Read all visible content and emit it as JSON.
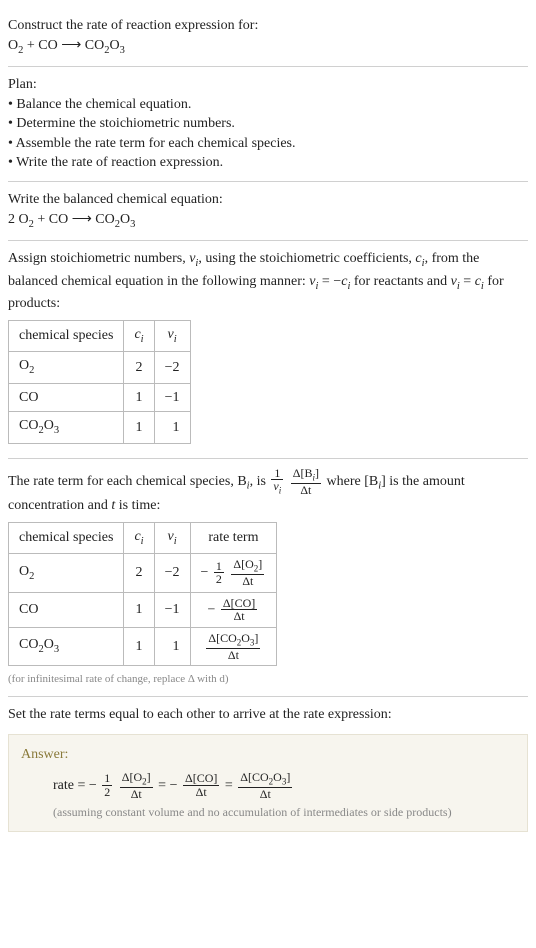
{
  "prompt": {
    "line1": "Construct the rate of reaction expression for:",
    "equation_lhs_1": "O",
    "equation_lhs_1_sub": "2",
    "equation_plus": " + CO",
    "arrow": " ⟶ ",
    "equation_rhs": "CO",
    "equation_rhs_sub1": "2",
    "equation_rhs_mid": "O",
    "equation_rhs_sub2": "3"
  },
  "plan": {
    "heading": "Plan:",
    "items": [
      "• Balance the chemical equation.",
      "• Determine the stoichiometric numbers.",
      "• Assemble the rate term for each chemical species.",
      "• Write the rate of reaction expression."
    ]
  },
  "balanced": {
    "heading": "Write the balanced chemical equation:",
    "coef": "2 ",
    "lhs1": "O",
    "lhs1_sub": "2",
    "plus": " + CO",
    "arrow": " ⟶ ",
    "rhs": "CO",
    "rhs_sub1": "2",
    "rhs_mid": "O",
    "rhs_sub2": "3"
  },
  "stoich_text": {
    "t1": "Assign stoichiometric numbers, ",
    "nu": "ν",
    "isub": "i",
    "t2": ", using the stoichiometric coefficients, ",
    "c": "c",
    "t3": ", from the balanced chemical equation in the following manner: ",
    "eq1_lhs": "ν",
    "eq1": " = −",
    "eq1_rhs": "c",
    "t4": " for reactants and ",
    "eq2_lhs": "ν",
    "eq2": " = ",
    "eq2_rhs": "c",
    "t5": " for products:"
  },
  "table1": {
    "h1": "chemical species",
    "h2": "c",
    "h2_sub": "i",
    "h3": "ν",
    "h3_sub": "i",
    "rows": [
      {
        "sp": "O",
        "sp_sub": "2",
        "c": "2",
        "v": "−2"
      },
      {
        "sp": "CO",
        "sp_sub": "",
        "c": "1",
        "v": "−1"
      },
      {
        "sp": "CO",
        "sp_sub": "2",
        "sp_mid": "O",
        "sp_sub2": "3",
        "c": "1",
        "v": "1"
      }
    ]
  },
  "rateterm_text": {
    "t1": "The rate term for each chemical species, B",
    "isub": "i",
    "t2": ", is ",
    "frac1_num": "1",
    "frac1_den_sym": "ν",
    "frac1_den_sub": "i",
    "frac2_num": "Δ[B",
    "frac2_num_sub": "i",
    "frac2_num_end": "]",
    "frac2_den": "Δt",
    "t3": " where [B",
    "t4": "] is the amount concentration and ",
    "tvar": "t",
    "t5": " is time:"
  },
  "table2": {
    "h1": "chemical species",
    "h2": "c",
    "h2_sub": "i",
    "h3": "ν",
    "h3_sub": "i",
    "h4": "rate term",
    "rows": [
      {
        "sp": "O",
        "sp_sub": "2",
        "c": "2",
        "v": "−2",
        "rt_prefix": "−",
        "rt_coef_num": "1",
        "rt_coef_den": "2",
        "rt_num": "Δ[O",
        "rt_num_sub": "2",
        "rt_num_end": "]",
        "rt_den": "Δt"
      },
      {
        "sp": "CO",
        "sp_sub": "",
        "c": "1",
        "v": "−1",
        "rt_prefix": "−",
        "rt_coef_num": "",
        "rt_coef_den": "",
        "rt_num": "Δ[CO]",
        "rt_num_sub": "",
        "rt_num_end": "",
        "rt_den": "Δt"
      },
      {
        "sp": "CO",
        "sp_sub": "2",
        "sp_mid": "O",
        "sp_sub2": "3",
        "c": "1",
        "v": "1",
        "rt_prefix": "",
        "rt_coef_num": "",
        "rt_coef_den": "",
        "rt_num": "Δ[CO",
        "rt_num_sub": "2",
        "rt_num_mid": "O",
        "rt_num_sub2": "3",
        "rt_num_end": "]",
        "rt_den": "Δt"
      }
    ],
    "footnote": "(for infinitesimal rate of change, replace Δ with d)"
  },
  "final": {
    "heading": "Set the rate terms equal to each other to arrive at the rate expression:"
  },
  "answer": {
    "label": "Answer:",
    "rate": "rate = ",
    "neg": "−",
    "half_num": "1",
    "half_den": "2",
    "f1_num": "Δ[O",
    "f1_num_sub": "2",
    "f1_num_end": "]",
    "f1_den": "Δt",
    "eq": " = ",
    "f2_num": "Δ[CO]",
    "f2_den": "Δt",
    "f3_num": "Δ[CO",
    "f3_num_sub": "2",
    "f3_num_mid": "O",
    "f3_num_sub2": "3",
    "f3_num_end": "]",
    "f3_den": "Δt",
    "sidenote": "(assuming constant volume and no accumulation of intermediates or side products)"
  }
}
